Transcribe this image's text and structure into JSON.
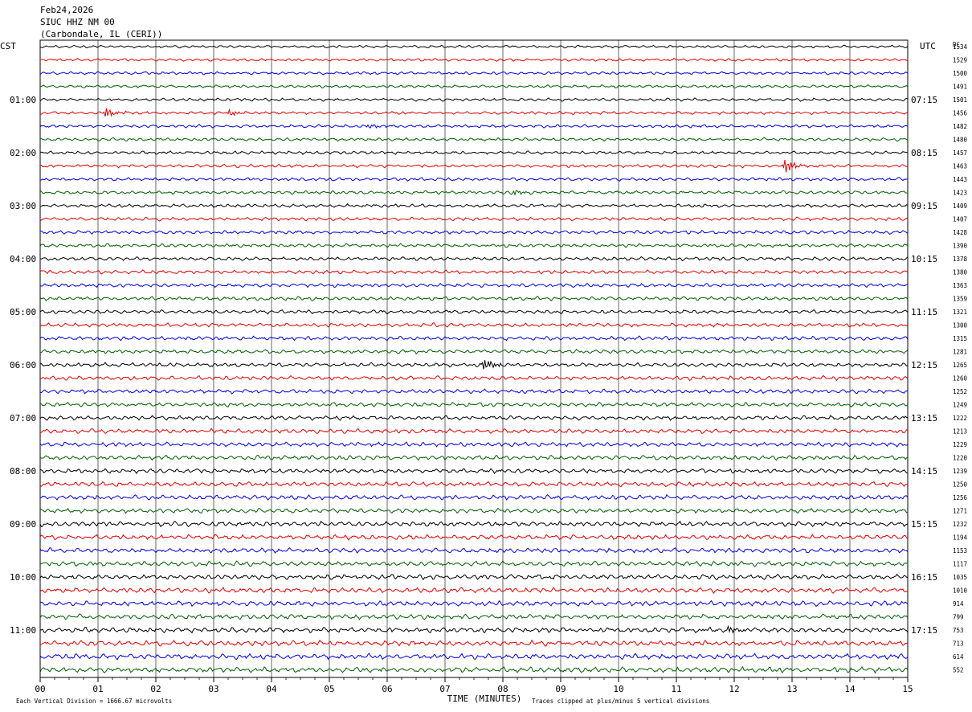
{
  "header": {
    "date": "Feb24,2026",
    "station": "SIUC HHZ NM 00",
    "location": "(Carbondale, IL (CERI))"
  },
  "chart_data": {
    "type": "line",
    "title": "Feb24,2026 SIUC HHZ NM 00 (Carbondale, IL (CERI))",
    "left_timezone": "CST",
    "right_timezone": "UTC",
    "dc_header": "DC",
    "xlabel": "TIME (MINUTES)",
    "xlim": [
      0,
      15
    ],
    "x_ticks": [
      "00",
      "01",
      "02",
      "03",
      "04",
      "05",
      "06",
      "07",
      "08",
      "09",
      "10",
      "11",
      "12",
      "13",
      "14",
      "15"
    ],
    "grid": true,
    "trace_colors": [
      "#000000",
      "#e00000",
      "#0000e0",
      "#006000"
    ],
    "traces_per_hour": 4,
    "left_hour_labels": [
      "01:00",
      "02:00",
      "03:00",
      "04:00",
      "05:00",
      "06:00",
      "07:00",
      "08:00",
      "09:00",
      "10:00",
      "11:00"
    ],
    "right_hour_labels": [
      "07:15",
      "08:15",
      "09:15",
      "10:15",
      "11:15",
      "12:15",
      "13:15",
      "14:15",
      "15:15",
      "16:15",
      "17:15"
    ],
    "dc_offsets": [
      1534,
      1529,
      1500,
      1491,
      1501,
      1456,
      1482,
      1480,
      1457,
      1463,
      1443,
      1423,
      1409,
      1407,
      1428,
      1390,
      1378,
      1380,
      1363,
      1359,
      1321,
      1300,
      1315,
      1281,
      1265,
      1260,
      1252,
      1249,
      1222,
      1213,
      1229,
      1220,
      1239,
      1250,
      1256,
      1271,
      1232,
      1194,
      1153,
      1117,
      1035,
      1010,
      914,
      799,
      753,
      713,
      614,
      552
    ],
    "events": [
      {
        "trace": 5,
        "minute": 1.15,
        "amp": 6
      },
      {
        "trace": 5,
        "minute": 3.3,
        "amp": 3
      },
      {
        "trace": 6,
        "minute": 5.7,
        "amp": 2
      },
      {
        "trace": 9,
        "minute": 12.9,
        "amp": 8
      },
      {
        "trace": 11,
        "minute": 8.2,
        "amp": 3
      },
      {
        "trace": 24,
        "minute": 7.7,
        "amp": 7
      },
      {
        "trace": 44,
        "minute": 11.9,
        "amp": 4
      }
    ]
  },
  "footer": {
    "scale_note": "Each Vertical Division = 1666.67 microvolts",
    "clip_note": "Traces clipped at plus/minus 5 vertical divisions"
  }
}
